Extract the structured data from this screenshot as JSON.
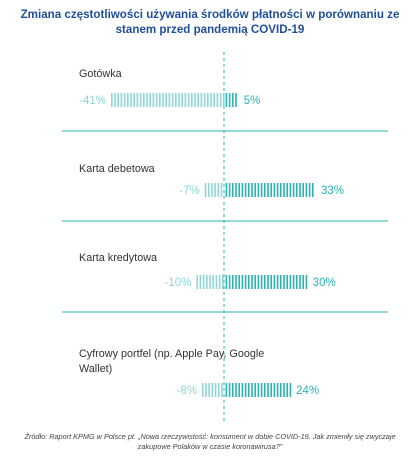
{
  "title": "Zmiana częstotliwości używania środków płatności w porównaniu ze stanem przed pandemią COVID-19",
  "source": "Źródło: Raport KPMG w Polsce pt. „Nowa rzeczywistość: konsument w dobie COVID-19. Jak zmieniły się zwyczaje zakupowe Polaków w czasie koronawirusa?”",
  "colors": {
    "title": "#1f4e9c",
    "negative": "#8fd6d6",
    "positive": "#2db3b3",
    "axis": "#2db3b3",
    "divider": "#2db3b3"
  },
  "chart_data": {
    "type": "bar",
    "orientation": "horizontal",
    "categories": [
      "Gotówka",
      "Karta debetowa",
      "Karta kredytowa",
      "Cyfrowy portfel (np. Apple Pay, Google Wallet)"
    ],
    "series": [
      {
        "values": [
          -41,
          -7,
          -10,
          -8
        ],
        "labels": [
          "-41%",
          "-7%",
          "-10%",
          "-8%"
        ]
      },
      {
        "values": [
          5,
          33,
          30,
          24
        ],
        "labels": [
          "5%",
          "33%",
          "30%",
          "24%"
        ]
      }
    ],
    "xlim": [
      -41,
      33
    ],
    "grid": false
  }
}
